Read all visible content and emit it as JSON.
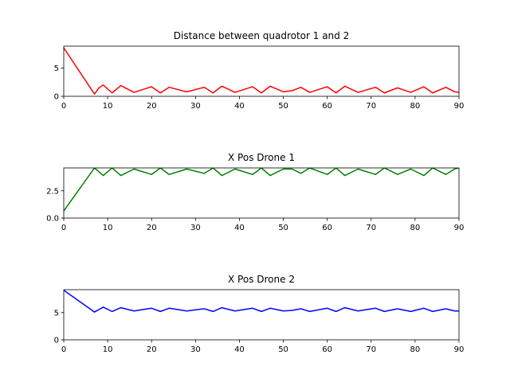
{
  "chart_data": [
    {
      "type": "line",
      "title": "Distance between quadrotor 1 and 2",
      "xlabel": "",
      "ylabel": "",
      "xlim": [
        0,
        90
      ],
      "ylim": [
        0,
        8.9
      ],
      "xticks": [
        0,
        10,
        20,
        30,
        40,
        50,
        60,
        70,
        80,
        90
      ],
      "yticks": [
        0,
        5
      ],
      "grid": false,
      "series": [
        {
          "name": "distance",
          "color": "#ff0000",
          "x": [
            0,
            7,
            8,
            9,
            11,
            13,
            16,
            20,
            22,
            24,
            28,
            32,
            34,
            36,
            39,
            43,
            45,
            47,
            50,
            52,
            54,
            56,
            60,
            62,
            64,
            67,
            71,
            73,
            76,
            79,
            82,
            84,
            87,
            89,
            90
          ],
          "y": [
            8.6,
            0.4,
            1.5,
            2.0,
            0.6,
            1.9,
            0.7,
            1.7,
            0.6,
            1.6,
            0.8,
            1.6,
            0.6,
            1.8,
            0.7,
            1.7,
            0.6,
            1.8,
            0.8,
            1.0,
            1.6,
            0.7,
            1.7,
            0.6,
            1.8,
            0.7,
            1.6,
            0.6,
            1.5,
            0.7,
            1.7,
            0.6,
            1.6,
            0.8,
            0.7
          ]
        }
      ]
    },
    {
      "type": "line",
      "title": "X Pos Drone 1",
      "xlabel": "",
      "ylabel": "",
      "xlim": [
        0,
        90
      ],
      "ylim": [
        0,
        4.6
      ],
      "xticks": [
        0,
        10,
        20,
        30,
        40,
        50,
        60,
        70,
        80,
        90
      ],
      "yticks": [
        0.0,
        2.5
      ],
      "ytick_labels": [
        "0.0",
        "2.5"
      ],
      "grid": false,
      "series": [
        {
          "name": "x position drone 1",
          "color": "#008000",
          "x": [
            0,
            7,
            9,
            11,
            13,
            16,
            20,
            22,
            24,
            28,
            32,
            34,
            36,
            39,
            43,
            45,
            47,
            50,
            52,
            54,
            56,
            60,
            62,
            64,
            67,
            71,
            73,
            76,
            79,
            82,
            84,
            87,
            89,
            90
          ],
          "y": [
            0.65,
            4.6,
            3.9,
            4.6,
            3.9,
            4.5,
            4.0,
            4.6,
            4.0,
            4.5,
            4.1,
            4.6,
            3.9,
            4.5,
            4.0,
            4.6,
            3.9,
            4.5,
            4.5,
            4.1,
            4.6,
            4.0,
            4.6,
            3.9,
            4.5,
            4.0,
            4.6,
            4.0,
            4.5,
            3.9,
            4.6,
            4.0,
            4.5,
            4.6
          ]
        }
      ]
    },
    {
      "type": "line",
      "title": "X Pos Drone 2",
      "xlabel": "",
      "ylabel": "",
      "xlim": [
        0,
        90
      ],
      "ylim": [
        0,
        9.2
      ],
      "xticks": [
        0,
        10,
        20,
        30,
        40,
        50,
        60,
        70,
        80,
        90
      ],
      "yticks": [
        0,
        5
      ],
      "grid": false,
      "series": [
        {
          "name": "x position drone 2",
          "color": "#0000ff",
          "x": [
            0,
            7,
            9,
            11,
            13,
            16,
            20,
            22,
            24,
            28,
            32,
            34,
            36,
            39,
            43,
            45,
            47,
            50,
            52,
            54,
            56,
            60,
            62,
            64,
            67,
            71,
            73,
            76,
            79,
            82,
            84,
            87,
            89,
            90
          ],
          "y": [
            9.1,
            5.1,
            6.0,
            5.2,
            5.9,
            5.3,
            5.8,
            5.2,
            5.8,
            5.3,
            5.7,
            5.2,
            5.9,
            5.3,
            5.8,
            5.2,
            5.8,
            5.3,
            5.4,
            5.7,
            5.2,
            5.8,
            5.2,
            5.9,
            5.3,
            5.8,
            5.2,
            5.7,
            5.2,
            5.8,
            5.2,
            5.7,
            5.3,
            5.3
          ]
        }
      ]
    }
  ]
}
